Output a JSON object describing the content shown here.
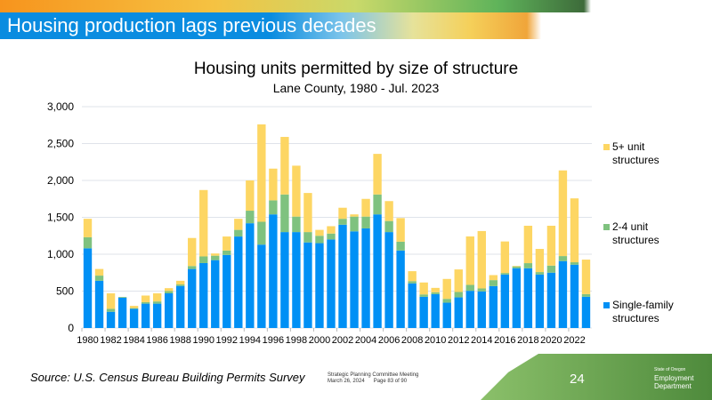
{
  "header": {
    "title": "Housing production lags previous decades"
  },
  "footer": {
    "source": "Source: U.S. Census Bureau Building Permits Survey",
    "meeting_line1": "Strategic Planning Committee Meeting",
    "meeting_date": "March 26, 2024",
    "meeting_page": "Page 83 of 90",
    "slide_number": "24",
    "logo_line1": "State of Oregon",
    "logo_line2": "Employment",
    "logo_line3": "Department"
  },
  "colors": {
    "single_family": "#0090f5",
    "two_four": "#7fc27f",
    "five_plus": "#fdd663"
  },
  "chart_data": {
    "type": "bar",
    "stacked": true,
    "title": "Housing units permitted by size of structure",
    "subtitle": "Lane County, 1980 - Jul. 2023",
    "xlabel": "",
    "ylabel": "",
    "ylim": [
      0,
      3000
    ],
    "yticks": [
      "0",
      "500",
      "1,000",
      "1,500",
      "2,000",
      "2,500",
      "3,000"
    ],
    "ytick_values": [
      0,
      500,
      1000,
      1500,
      2000,
      2500,
      3000
    ],
    "categories": [
      1980,
      1981,
      1982,
      1983,
      1984,
      1985,
      1986,
      1987,
      1988,
      1989,
      1990,
      1991,
      1992,
      1993,
      1994,
      1995,
      1996,
      1997,
      1998,
      1999,
      2000,
      2001,
      2002,
      2003,
      2004,
      2005,
      2006,
      2007,
      2008,
      2009,
      2010,
      2011,
      2012,
      2013,
      2014,
      2015,
      2016,
      2017,
      2018,
      2019,
      2020,
      2021,
      2022,
      2023
    ],
    "xtick_labels": [
      "1980",
      "1982",
      "1984",
      "1986",
      "1988",
      "1990",
      "1992",
      "1994",
      "1996",
      "1998",
      "2000",
      "2002",
      "2004",
      "2006",
      "2008",
      "2010",
      "2012",
      "2014",
      "2016",
      "2018",
      "2020",
      "2022"
    ],
    "legend_position": "right",
    "series": [
      {
        "name": "Single-family structures",
        "values": [
          1080,
          640,
          220,
          410,
          260,
          330,
          330,
          470,
          570,
          800,
          880,
          920,
          990,
          1240,
          1420,
          1130,
          1540,
          1300,
          1300,
          1160,
          1150,
          1200,
          1400,
          1310,
          1350,
          1540,
          1300,
          1050,
          605,
          423,
          459,
          343,
          415,
          504,
          496,
          568,
          725,
          810,
          810,
          725,
          750,
          907,
          858,
          423
        ]
      },
      {
        "name": "2-4 unit structures",
        "values": [
          150,
          70,
          40,
          10,
          10,
          20,
          30,
          30,
          20,
          40,
          90,
          60,
          60,
          90,
          170,
          310,
          190,
          510,
          210,
          140,
          100,
          80,
          80,
          200,
          160,
          270,
          150,
          120,
          30,
          32,
          25,
          52,
          73,
          80,
          40,
          81,
          21,
          24,
          69,
          33,
          96,
          68,
          33,
          36
        ]
      },
      {
        "name": "5+ unit structures",
        "values": [
          250,
          90,
          210,
          0,
          30,
          90,
          110,
          40,
          50,
          380,
          900,
          30,
          190,
          150,
          410,
          1320,
          430,
          780,
          690,
          530,
          80,
          100,
          150,
          30,
          240,
          550,
          270,
          320,
          135,
          162,
          60,
          270,
          306,
          657,
          778,
          68,
          427,
          8,
          507,
          314,
          540,
          1161,
          866,
          468
        ]
      }
    ],
    "legend": [
      {
        "line1": "5+ unit",
        "line2": "structures"
      },
      {
        "line1": "2-4 unit",
        "line2": "structures"
      },
      {
        "line1": "Single-family",
        "line2": "structures"
      }
    ]
  }
}
